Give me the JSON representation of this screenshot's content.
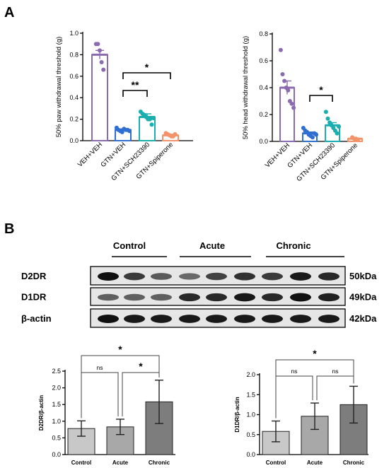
{
  "panels": {
    "a": "A",
    "b": "B"
  },
  "chart_data": [
    {
      "type": "bar",
      "panel": "A-left",
      "ylabel": "50% paw withdrawal threshold (g)",
      "ylim": [
        0,
        1.0
      ],
      "yticks": [
        "0.0",
        "0.2",
        "0.4",
        "0.6",
        "0.8",
        "1.0"
      ],
      "categories": [
        "VEH+VEH",
        "GTN+VEH",
        "GTN+SCH23390",
        "GTN+Spiperone"
      ],
      "values": [
        0.8,
        0.1,
        0.22,
        0.05
      ],
      "errors": [
        0.04,
        0.01,
        0.03,
        0.01
      ],
      "colors": [
        "#8b6bb0",
        "#2e6fd1",
        "#1aaeae",
        "#f4936a"
      ],
      "points": [
        [
          0.9,
          0.9,
          0.84,
          0.73,
          0.66
        ],
        [
          0.12,
          0.1,
          0.09,
          0.08,
          0.11,
          0.1,
          0.1,
          0.09
        ],
        [
          0.27,
          0.25,
          0.24,
          0.22,
          0.2,
          0.2,
          0.15,
          0.21
        ],
        [
          0.07,
          0.06,
          0.05,
          0.04,
          0.04,
          0.06
        ]
      ],
      "annotations": [
        {
          "from": 1,
          "to": 2,
          "label": "**"
        },
        {
          "from": 1,
          "to": 3,
          "label": "*"
        }
      ]
    },
    {
      "type": "bar",
      "panel": "A-right",
      "ylabel": "50% head withdrawal threshold (g)",
      "ylim": [
        0,
        0.8
      ],
      "yticks": [
        "0.0",
        "0.2",
        "0.4",
        "0.6",
        "0.8"
      ],
      "categories": [
        "VEH+VEH",
        "GTN+VEH",
        "GTN+SCH23390",
        "GTN+Spiperone"
      ],
      "values": [
        0.4,
        0.06,
        0.12,
        0.02
      ],
      "errors": [
        0.05,
        0.01,
        0.02,
        0.005
      ],
      "colors": [
        "#8b6bb0",
        "#2e6fd1",
        "#1aaeae",
        "#f4936a"
      ],
      "points": [
        [
          0.68,
          0.5,
          0.45,
          0.4,
          0.38,
          0.3,
          0.28,
          0.25
        ],
        [
          0.1,
          0.08,
          0.07,
          0.05,
          0.04,
          0.03,
          0.06,
          0.05
        ],
        [
          0.22,
          0.17,
          0.14,
          0.12,
          0.1,
          0.08,
          0.06,
          0.11
        ],
        [
          0.03,
          0.02,
          0.02,
          0.01
        ]
      ],
      "annotations": [
        {
          "from": 1,
          "to": 2,
          "label": "*"
        }
      ]
    },
    {
      "type": "bar",
      "panel": "B-left",
      "ylabel": "D2DR/β-actin",
      "ylim": [
        0,
        2.5
      ],
      "yticks": [
        "0.0",
        "0.5",
        "1.0",
        "1.5",
        "2.0",
        "2.5"
      ],
      "categories": [
        "Control",
        "Acute",
        "Chronic"
      ],
      "values": [
        0.78,
        0.83,
        1.58
      ],
      "errors": [
        0.23,
        0.23,
        0.65
      ],
      "colors": [
        "#c8c8c8",
        "#a8a8a8",
        "#7d7d7d"
      ],
      "annotations": [
        {
          "from": 0,
          "to": 1,
          "label": "ns"
        },
        {
          "from": 1,
          "to": 2,
          "label": "*"
        },
        {
          "from": 0,
          "to": 2,
          "label": "*"
        }
      ]
    },
    {
      "type": "bar",
      "panel": "B-right",
      "ylabel": "D1DR/β-actin",
      "ylim": [
        0,
        2.0
      ],
      "yticks": [
        "0.0",
        "0.5",
        "1.0",
        "1.5",
        "2.0"
      ],
      "categories": [
        "Control",
        "Acute",
        "Chronic"
      ],
      "values": [
        0.58,
        0.96,
        1.25
      ],
      "errors": [
        0.26,
        0.33,
        0.46
      ],
      "colors": [
        "#c8c8c8",
        "#a8a8a8",
        "#7d7d7d"
      ],
      "annotations": [
        {
          "from": 0,
          "to": 1,
          "label": "ns"
        },
        {
          "from": 1,
          "to": 2,
          "label": "ns"
        },
        {
          "from": 0,
          "to": 2,
          "label": "*"
        }
      ]
    }
  ],
  "blot": {
    "groups": [
      "Control",
      "Acute",
      "Chronic"
    ],
    "rows": [
      {
        "label": "D2DR",
        "kda": "50kDa",
        "intensity": [
          1.0,
          0.75,
          0.55,
          0.45,
          0.7,
          0.8,
          0.75,
          0.95,
          0.85
        ]
      },
      {
        "label": "D1DR",
        "kda": "49kDa",
        "intensity": [
          0.5,
          0.5,
          0.5,
          0.85,
          0.85,
          0.95,
          0.85,
          1.0,
          0.9
        ]
      },
      {
        "label": "β-actin",
        "kda": "42kDa",
        "intensity": [
          1.0,
          0.95,
          0.95,
          0.95,
          0.95,
          0.95,
          0.95,
          0.95,
          0.95
        ]
      }
    ]
  }
}
